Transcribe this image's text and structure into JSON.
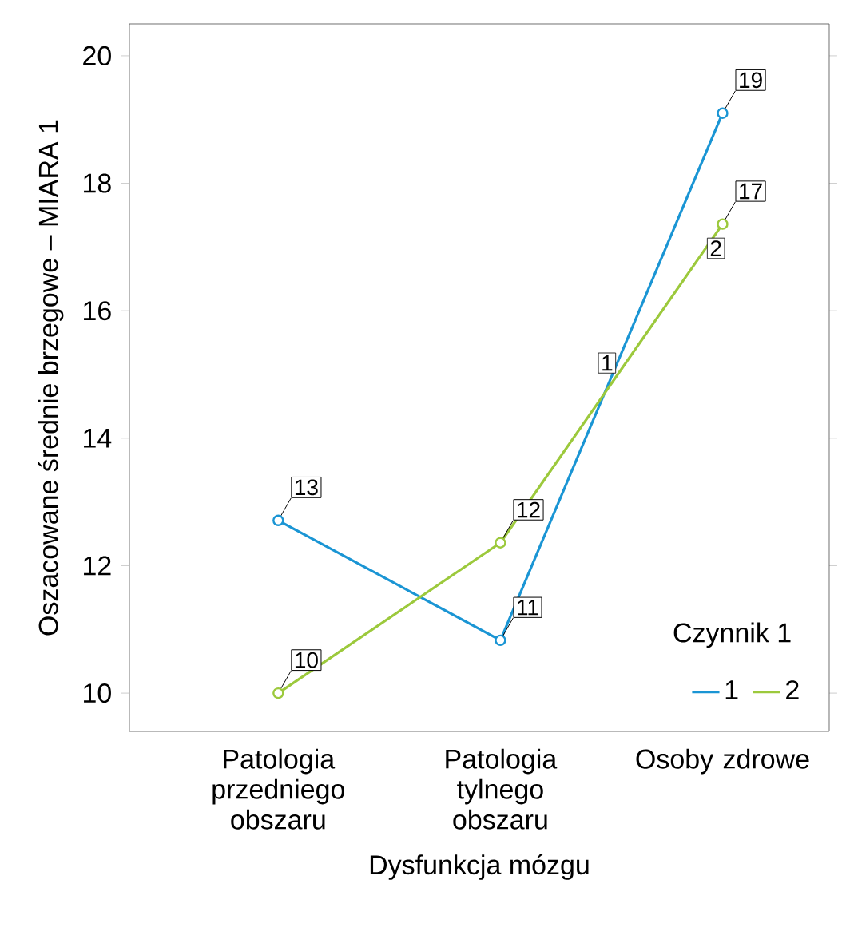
{
  "chart_data": {
    "type": "line",
    "xlabel": "Dysfunkcja mózgu",
    "ylabel": "Oszacowane średnie brzegowe – MIARA 1",
    "legend_title": "Czynnik 1",
    "categories": [
      "Patologia przedniego obszaru",
      "Patologia tylnego obszaru",
      "Osoby zdrowe"
    ],
    "series": [
      {
        "name": "1",
        "color": "#1a95d4",
        "values": [
          12.71,
          10.83,
          19.1
        ],
        "value_labels": [
          "13",
          "11",
          "19"
        ]
      },
      {
        "name": "2",
        "color": "#9cc93c",
        "values": [
          10.0,
          12.36,
          17.36
        ],
        "value_labels": [
          "10",
          "12",
          "17"
        ]
      }
    ],
    "annotations": [
      "1",
      "2"
    ],
    "ylim": [
      9.4,
      20.5
    ],
    "yticks": [
      10,
      12,
      14,
      16,
      18,
      20
    ],
    "grid": false,
    "legend": "bottom right",
    "marker": "circle",
    "line_style": "solid"
  }
}
